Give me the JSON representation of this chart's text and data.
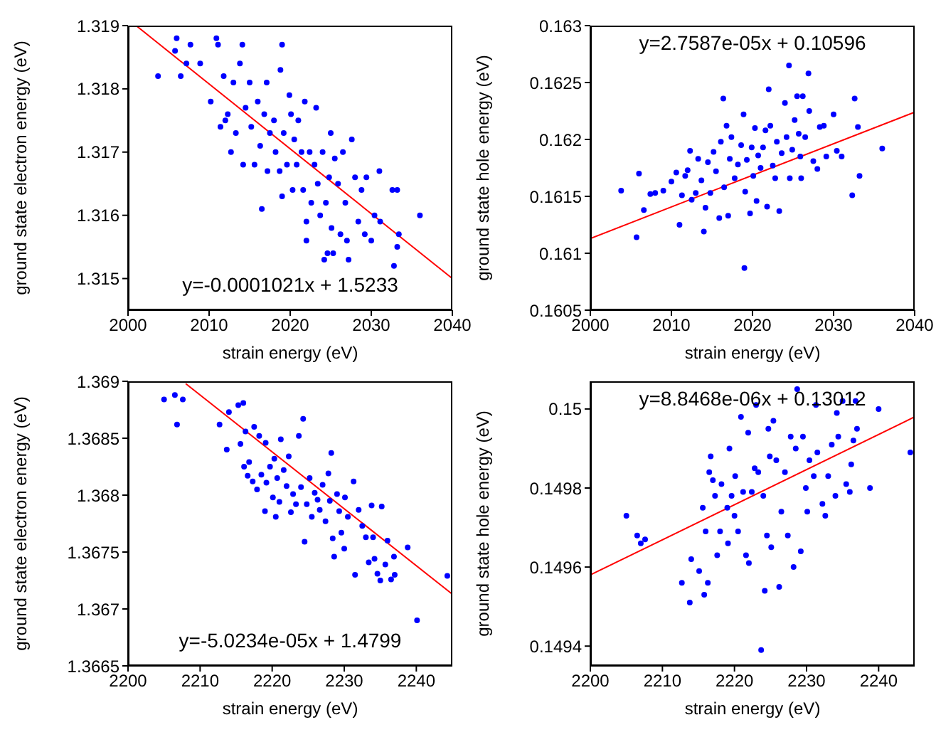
{
  "chart_data": [
    {
      "type": "scatter",
      "xlabel": "strain energy (eV)",
      "ylabel": "ground state electron energy (eV)",
      "xlim": [
        2000,
        2040
      ],
      "xticks": [
        2000,
        2010,
        2020,
        2030,
        2040
      ],
      "ylim": [
        1.3145,
        1.319
      ],
      "yticks": [
        1.315,
        1.316,
        1.317,
        1.318,
        1.319
      ],
      "grid": false,
      "legend": false,
      "annotations": [
        "y=-0.0001021x + 1.5233"
      ],
      "series": [
        {
          "type": "scatter",
          "color": "#0000ff",
          "marker": "circle",
          "x": [
            2003.7,
            2005.8,
            2006,
            2006.5,
            2007.2,
            2007.7,
            2008.9,
            2010.2,
            2010.9,
            2011.1,
            2011.4,
            2011.8,
            2012,
            2012.3,
            2012.7,
            2013,
            2013.3,
            2013.8,
            2014.1,
            2014.2,
            2014.5,
            2015,
            2015.2,
            2015.6,
            2016,
            2016.3,
            2016.5,
            2016.8,
            2017.1,
            2017.2,
            2017.5,
            2018,
            2018.2,
            2018.7,
            2018.8,
            2019,
            2019,
            2019.2,
            2019.6,
            2019.9,
            2020.1,
            2020.3,
            2020.5,
            2020.8,
            2021,
            2021.4,
            2021.6,
            2021.8,
            2022,
            2022,
            2022.4,
            2022.6,
            2023,
            2023.2,
            2023.4,
            2023.7,
            2024,
            2024.2,
            2024.4,
            2024.6,
            2024.8,
            2025,
            2025.1,
            2025.3,
            2025.5,
            2025.9,
            2026.2,
            2026.5,
            2026.8,
            2027,
            2027.2,
            2027.6,
            2028,
            2028.4,
            2028.8,
            2029.2,
            2029.4,
            2030,
            2030.4,
            2031,
            2031.1,
            2032.6,
            2032.8,
            2033.2,
            2033.2,
            2033.4,
            2036
          ],
          "values": [
            1.3182,
            1.3186,
            1.3188,
            1.3182,
            1.3184,
            1.3187,
            1.3184,
            1.3178,
            1.3188,
            1.3187,
            1.3174,
            1.3182,
            1.3175,
            1.3176,
            1.317,
            1.3181,
            1.3173,
            1.3184,
            1.3187,
            1.3168,
            1.3177,
            1.3181,
            1.3174,
            1.3168,
            1.3178,
            1.3171,
            1.3161,
            1.3176,
            1.3181,
            1.3167,
            1.3173,
            1.3175,
            1.317,
            1.3167,
            1.3183,
            1.3187,
            1.3163,
            1.3173,
            1.3168,
            1.3179,
            1.3176,
            1.3164,
            1.3172,
            1.3168,
            1.3175,
            1.317,
            1.3164,
            1.3178,
            1.3156,
            1.3159,
            1.317,
            1.3162,
            1.3168,
            1.3177,
            1.3165,
            1.316,
            1.317,
            1.3153,
            1.3162,
            1.3154,
            1.3166,
            1.3173,
            1.3158,
            1.3154,
            1.3169,
            1.3165,
            1.3157,
            1.317,
            1.3162,
            1.3156,
            1.3153,
            1.3172,
            1.3166,
            1.3159,
            1.3164,
            1.3157,
            1.3166,
            1.3156,
            1.316,
            1.3167,
            1.3159,
            1.3164,
            1.3152,
            1.3155,
            1.3164,
            1.3157,
            1.316
          ]
        },
        {
          "type": "line",
          "color": "#ff0000",
          "marker": "none",
          "x": [
            2001,
            2040
          ],
          "values": [
            1.319,
            1.315
          ]
        }
      ]
    },
    {
      "type": "scatter",
      "xlabel": "strain energy (eV)",
      "ylabel": "ground state hole energy (eV)",
      "xlim": [
        2000,
        2040
      ],
      "xticks": [
        2000,
        2010,
        2020,
        2030,
        2040
      ],
      "ylim": [
        0.1605,
        0.163
      ],
      "yticks": [
        0.1605,
        0.161,
        0.1615,
        0.162,
        0.1625,
        0.163
      ],
      "grid": false,
      "legend": false,
      "annotations": [
        "y=2.7587e-05x + 0.10596"
      ],
      "series": [
        {
          "type": "scatter",
          "color": "#0000ff",
          "marker": "circle",
          "x": [
            2003.8,
            2005.7,
            2006,
            2006.6,
            2007.4,
            2008,
            2009,
            2010,
            2010.6,
            2011,
            2011.3,
            2011.7,
            2012,
            2012.3,
            2012.5,
            2013,
            2013.3,
            2013.7,
            2014,
            2014.2,
            2014.5,
            2014.8,
            2015.2,
            2015.5,
            2015.9,
            2016.1,
            2016.4,
            2016.5,
            2016.8,
            2017,
            2017.2,
            2017.4,
            2017.8,
            2018.2,
            2018.6,
            2018.9,
            2019,
            2019.1,
            2019.3,
            2019.7,
            2019.9,
            2020.1,
            2020.3,
            2020.5,
            2020.7,
            2021,
            2021.3,
            2021.6,
            2021.8,
            2022,
            2022.2,
            2022.5,
            2022.8,
            2023,
            2023.3,
            2023.6,
            2024,
            2024.2,
            2024.5,
            2024.6,
            2024.9,
            2025.2,
            2025.5,
            2025.7,
            2025.9,
            2026,
            2026.2,
            2026.5,
            2026.9,
            2027,
            2027.5,
            2028,
            2028.3,
            2028.8,
            2029.1,
            2030,
            2030.4,
            2031,
            2032.3,
            2032.6,
            2033,
            2033.2,
            2036
          ],
          "values": [
            0.16155,
            0.16114,
            0.1617,
            0.16138,
            0.16152,
            0.16153,
            0.16155,
            0.16163,
            0.16171,
            0.16125,
            0.16151,
            0.16168,
            0.16173,
            0.1619,
            0.16147,
            0.16153,
            0.16183,
            0.16164,
            0.16119,
            0.1614,
            0.1618,
            0.16153,
            0.16189,
            0.16172,
            0.16131,
            0.16198,
            0.16236,
            0.16158,
            0.16212,
            0.16133,
            0.16183,
            0.16202,
            0.16166,
            0.16178,
            0.16195,
            0.16222,
            0.16087,
            0.16154,
            0.16182,
            0.16135,
            0.16193,
            0.16168,
            0.1621,
            0.16146,
            0.16186,
            0.16175,
            0.16193,
            0.16208,
            0.16141,
            0.16244,
            0.16212,
            0.16177,
            0.16166,
            0.16198,
            0.16137,
            0.16188,
            0.16232,
            0.16202,
            0.16265,
            0.16166,
            0.16191,
            0.16217,
            0.16238,
            0.16205,
            0.16185,
            0.16166,
            0.16238,
            0.16202,
            0.16258,
            0.16225,
            0.16181,
            0.16174,
            0.16211,
            0.16212,
            0.16185,
            0.16222,
            0.1619,
            0.16185,
            0.16151,
            0.16236,
            0.16211,
            0.16168,
            0.16192
          ]
        },
        {
          "type": "line",
          "color": "#ff0000",
          "marker": "none",
          "x": [
            2000,
            2040
          ],
          "values": [
            0.16113,
            0.16224
          ]
        }
      ]
    },
    {
      "type": "scatter",
      "xlabel": "strain energy (eV)",
      "ylabel": "ground state electron energy (eV)",
      "xlim": [
        2200,
        2245
      ],
      "xticks": [
        2200,
        2210,
        2220,
        2230,
        2240
      ],
      "ylim": [
        1.3665,
        1.369
      ],
      "yticks": [
        1.3665,
        1.367,
        1.3675,
        1.368,
        1.3685,
        1.369
      ],
      "grid": false,
      "legend": false,
      "annotations": [
        "y=-5.0234e-05x + 1.4799"
      ],
      "series": [
        {
          "type": "scatter",
          "color": "#0000ff",
          "marker": "circle",
          "x": [
            2205,
            2206.5,
            2206.8,
            2207.6,
            2212.7,
            2213.7,
            2214,
            2215.3,
            2215.6,
            2216,
            2216.1,
            2216.3,
            2216.6,
            2216.8,
            2217.3,
            2217.5,
            2217.9,
            2218.2,
            2218.5,
            2219,
            2219.1,
            2219.2,
            2219.7,
            2220.1,
            2220.3,
            2220.5,
            2220.7,
            2221,
            2221.2,
            2221.6,
            2222,
            2222.3,
            2222.6,
            2222.9,
            2223.3,
            2223.7,
            2224,
            2224.3,
            2224.5,
            2224.8,
            2225.2,
            2225.5,
            2225.9,
            2226.3,
            2226.6,
            2227,
            2227.4,
            2227.8,
            2228,
            2228.2,
            2228.4,
            2228.6,
            2229,
            2229.3,
            2229.6,
            2230,
            2230.1,
            2230.5,
            2231.3,
            2231.5,
            2232,
            2232.5,
            2233,
            2233.4,
            2233.8,
            2234,
            2234.2,
            2234.6,
            2235,
            2235.2,
            2235.7,
            2236,
            2236.5,
            2236.9,
            2237,
            2238.8,
            2240.1,
            2244.3
          ],
          "values": [
            1.36884,
            1.36888,
            1.36862,
            1.36884,
            1.36862,
            1.3684,
            1.36873,
            1.36879,
            1.36845,
            1.36881,
            1.36825,
            1.36856,
            1.36817,
            1.36829,
            1.36812,
            1.3686,
            1.36805,
            1.36852,
            1.36818,
            1.36786,
            1.36846,
            1.36811,
            1.36825,
            1.36798,
            1.36832,
            1.36781,
            1.36815,
            1.36794,
            1.36849,
            1.36822,
            1.36808,
            1.36834,
            1.36785,
            1.36801,
            1.36792,
            1.36852,
            1.36807,
            1.36867,
            1.36759,
            1.36792,
            1.36815,
            1.36781,
            1.36802,
            1.36796,
            1.36787,
            1.36809,
            1.36777,
            1.36819,
            1.36795,
            1.36837,
            1.36762,
            1.36746,
            1.36801,
            1.36786,
            1.36767,
            1.36753,
            1.36798,
            1.36781,
            1.36812,
            1.3673,
            1.36787,
            1.36773,
            1.36763,
            1.36741,
            1.36791,
            1.36763,
            1.36744,
            1.36731,
            1.36725,
            1.3679,
            1.36739,
            1.3676,
            1.36726,
            1.36746,
            1.3673,
            1.36754,
            1.3669,
            1.36729
          ]
        },
        {
          "type": "line",
          "color": "#ff0000",
          "marker": "none",
          "x": [
            2208,
            2245
          ],
          "values": [
            1.36898,
            1.36713
          ]
        }
      ]
    },
    {
      "type": "scatter",
      "xlabel": "strain energy (eV)",
      "ylabel": "ground state hole energy (eV)",
      "xlim": [
        2200,
        2245
      ],
      "xticks": [
        2200,
        2210,
        2220,
        2230,
        2240
      ],
      "ylim": [
        0.14935,
        0.15007
      ],
      "yticks": [
        0.1494,
        0.1496,
        0.1498,
        0.15
      ],
      "grid": false,
      "legend": false,
      "annotations": [
        "y=8.8468e-06x + 0.13012"
      ],
      "series": [
        {
          "type": "scatter",
          "color": "#0000ff",
          "marker": "circle",
          "x": [
            2205,
            2206.5,
            2207,
            2207.6,
            2212.7,
            2213.8,
            2214,
            2215.1,
            2215.6,
            2215.8,
            2216,
            2216.3,
            2216.5,
            2216.7,
            2217,
            2217.3,
            2217.6,
            2218,
            2218.2,
            2219,
            2219.1,
            2219.3,
            2219.6,
            2220,
            2220.1,
            2220.5,
            2220.9,
            2221.2,
            2221.6,
            2221.9,
            2222,
            2222.4,
            2222.8,
            2223,
            2223.3,
            2223.7,
            2224,
            2224.2,
            2224.5,
            2224.7,
            2224.9,
            2225.1,
            2225.4,
            2225.8,
            2226.2,
            2226.5,
            2227,
            2227.4,
            2227.8,
            2228.2,
            2228.5,
            2228.7,
            2229.2,
            2229.5,
            2229.9,
            2230.1,
            2230.4,
            2231,
            2231.3,
            2231.5,
            2232.2,
            2232.6,
            2233,
            2233.5,
            2234,
            2234.2,
            2234.4,
            2235,
            2235.5,
            2236,
            2236.2,
            2236.5,
            2236.8,
            2237,
            2238.8,
            2240,
            2244.4
          ],
          "values": [
            0.14973,
            0.14968,
            0.14966,
            0.14967,
            0.14956,
            0.14951,
            0.14962,
            0.14959,
            0.14975,
            0.14953,
            0.14969,
            0.14956,
            0.14984,
            0.14988,
            0.14982,
            0.14978,
            0.14963,
            0.14969,
            0.14981,
            0.14975,
            0.14966,
            0.1499,
            0.14978,
            0.14973,
            0.14983,
            0.14969,
            0.14998,
            0.14979,
            0.14963,
            0.14994,
            0.14961,
            0.14979,
            0.14985,
            0.15001,
            0.14984,
            0.14939,
            0.14978,
            0.14954,
            0.14968,
            0.14995,
            0.14988,
            0.14965,
            0.14997,
            0.14987,
            0.14955,
            0.14974,
            0.14984,
            0.14968,
            0.14993,
            0.1496,
            0.1499,
            0.15005,
            0.14964,
            0.14993,
            0.1498,
            0.14974,
            0.14987,
            0.14983,
            0.15001,
            0.14989,
            0.14976,
            0.14973,
            0.14983,
            0.14991,
            0.14978,
            0.14999,
            0.14993,
            0.15002,
            0.14981,
            0.14979,
            0.14986,
            0.14992,
            0.15002,
            0.14995,
            0.1498,
            0.15,
            0.14989
          ]
        },
        {
          "type": "line",
          "color": "#ff0000",
          "marker": "none",
          "x": [
            2200,
            2245
          ],
          "values": [
            0.14958,
            0.14998
          ]
        }
      ]
    }
  ]
}
